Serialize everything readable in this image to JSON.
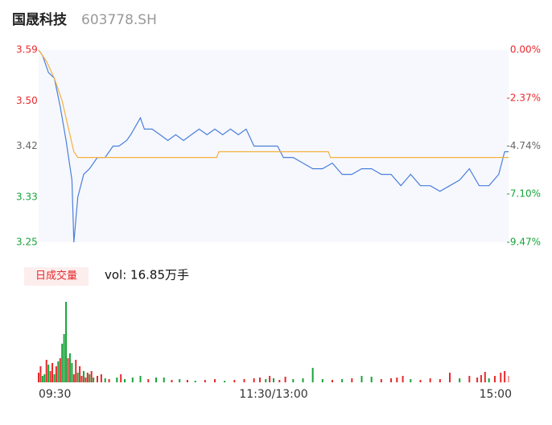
{
  "header": {
    "name": "国晟科技",
    "code": "603778.SH"
  },
  "chart_data": [
    {
      "type": "line",
      "xlim": [
        0,
        240
      ],
      "xticks": [
        {
          "value": 0,
          "label": "09:30"
        },
        {
          "value": 120,
          "label": "11:30/13:00"
        },
        {
          "value": 240,
          "label": "15:00"
        }
      ],
      "ylim": [
        3.25,
        3.59
      ],
      "yticks": [
        3.59,
        {
          "value": 3.5,
          "label": "3.50"
        },
        3.42,
        3.33,
        3.25
      ],
      "ytick_colors": [
        "#e8292c",
        "#e8292c",
        "#666666",
        "#17a33a",
        "#17a33a"
      ],
      "y2lim": [
        -9.47,
        0
      ],
      "y2ticks": [
        {
          "value": 0,
          "label": "0.00%"
        },
        {
          "value": -2.37,
          "label": "-2.37%"
        },
        {
          "value": -4.74,
          "label": "-4.74%"
        },
        {
          "value": -7.1,
          "label": "-7.10%"
        },
        {
          "value": -9.47,
          "label": "-9.47%"
        }
      ],
      "series": [
        {
          "color": "#4b7fdc",
          "x": [
            0,
            2,
            5,
            8,
            11,
            14,
            17,
            18,
            20,
            23,
            26,
            30,
            34,
            38,
            41,
            45,
            47,
            52,
            54,
            58,
            62,
            66,
            70,
            74,
            78,
            82,
            86,
            90,
            94,
            98,
            102,
            106,
            110,
            114,
            118,
            122,
            125,
            130,
            135,
            140,
            145,
            150,
            155,
            160,
            165,
            170,
            175,
            180,
            185,
            190,
            195,
            200,
            205,
            210,
            215,
            220,
            225,
            230,
            235,
            238,
            240
          ],
          "values": [
            3.59,
            3.58,
            3.55,
            3.54,
            3.49,
            3.43,
            3.36,
            3.25,
            3.33,
            3.37,
            3.38,
            3.4,
            3.4,
            3.42,
            3.42,
            3.43,
            3.44,
            3.47,
            3.45,
            3.45,
            3.44,
            3.43,
            3.44,
            3.43,
            3.44,
            3.45,
            3.44,
            3.45,
            3.44,
            3.45,
            3.44,
            3.45,
            3.42,
            3.42,
            3.42,
            3.42,
            3.4,
            3.4,
            3.39,
            3.38,
            3.38,
            3.39,
            3.37,
            3.37,
            3.38,
            3.38,
            3.37,
            3.37,
            3.35,
            3.37,
            3.35,
            3.35,
            3.34,
            3.35,
            3.36,
            3.38,
            3.35,
            3.35,
            3.37,
            3.41,
            3.41
          ]
        },
        {
          "color": "#f4b13e",
          "x": [
            0,
            4,
            8,
            12,
            16,
            18,
            20,
            91,
            92,
            148,
            149,
            240
          ],
          "values": [
            3.59,
            3.57,
            3.54,
            3.5,
            3.44,
            3.41,
            3.4,
            3.4,
            3.41,
            3.41,
            3.4,
            3.4
          ]
        }
      ]
    },
    {
      "type": "bar",
      "legend_label": "日成交量",
      "summary": "vol: 16.85万手",
      "xlim": [
        0,
        240
      ],
      "ylim": [
        0,
        105
      ],
      "x": [
        0,
        1,
        2,
        3,
        4,
        5,
        6,
        7,
        8,
        9,
        10,
        11,
        12,
        13,
        14,
        15,
        16,
        17,
        18,
        19,
        20,
        21,
        22,
        23,
        24,
        25,
        26,
        27,
        28,
        30,
        32,
        34,
        36,
        40,
        42,
        44,
        48,
        52,
        56,
        60,
        64,
        68,
        72,
        76,
        80,
        85,
        90,
        95,
        100,
        105,
        110,
        113,
        116,
        118,
        120,
        123,
        126,
        130,
        135,
        140,
        145,
        150,
        155,
        160,
        165,
        170,
        175,
        180,
        183,
        186,
        190,
        195,
        200,
        205,
        210,
        215,
        220,
        224,
        226,
        228,
        230,
        233,
        236,
        238,
        240
      ],
      "values": [
        12,
        20,
        8,
        10,
        28,
        22,
        14,
        24,
        10,
        20,
        26,
        30,
        48,
        60,
        100,
        30,
        36,
        24,
        10,
        28,
        12,
        20,
        8,
        14,
        6,
        12,
        10,
        14,
        6,
        8,
        10,
        5,
        4,
        6,
        10,
        4,
        6,
        8,
        4,
        6,
        6,
        3,
        4,
        3,
        2,
        3,
        4,
        2,
        3,
        4,
        5,
        6,
        4,
        8,
        5,
        3,
        7,
        4,
        5,
        18,
        4,
        3,
        4,
        5,
        8,
        7,
        4,
        5,
        6,
        8,
        4,
        3,
        5,
        4,
        12,
        5,
        8,
        6,
        9,
        13,
        5,
        8,
        12,
        14,
        8
      ],
      "colors": [
        "#e8292c",
        "#e8292c",
        "#17a33a",
        "#17a33a",
        "#e8292c",
        "#17a33a",
        "#e8292c",
        "#e8292c",
        "#17a33a",
        "#e8292c",
        "#17a33a",
        "#e8292c",
        "#17a33a",
        "#17a33a",
        "#17a33a",
        "#e8292c",
        "#17a33a",
        "#17a33a",
        "#e8292c",
        "#e8292c",
        "#17a33a",
        "#e8292c",
        "#e8292c",
        "#17a33a",
        "#e8292c",
        "#e8292c",
        "#17a33a",
        "#e8292c",
        "#17a33a",
        "#e8292c",
        "#e8292c",
        "#17a33a",
        "#e8292c",
        "#17a33a",
        "#e8292c",
        "#17a33a",
        "#17a33a",
        "#17a33a",
        "#e8292c",
        "#17a33a",
        "#17a33a",
        "#e8292c",
        "#17a33a",
        "#e8292c",
        "#17a33a",
        "#e8292c",
        "#e8292c",
        "#17a33a",
        "#e8292c",
        "#e8292c",
        "#e8292c",
        "#e8292c",
        "#17a33a",
        "#e8292c",
        "#17a33a",
        "#e8292c",
        "#e8292c",
        "#17a33a",
        "#17a33a",
        "#17a33a",
        "#17a33a",
        "#e8292c",
        "#17a33a",
        "#e8292c",
        "#17a33a",
        "#17a33a",
        "#e8292c",
        "#e8292c",
        "#e8292c",
        "#e8292c",
        "#17a33a",
        "#e8292c",
        "#e8292c",
        "#e8292c",
        "#e8292c",
        "#17a33a",
        "#e8292c",
        "#e8292c",
        "#e8292c",
        "#e8292c",
        "#17a33a",
        "#e8292c",
        "#e8292c",
        "#e8292c",
        "#f4a0a0"
      ]
    }
  ]
}
